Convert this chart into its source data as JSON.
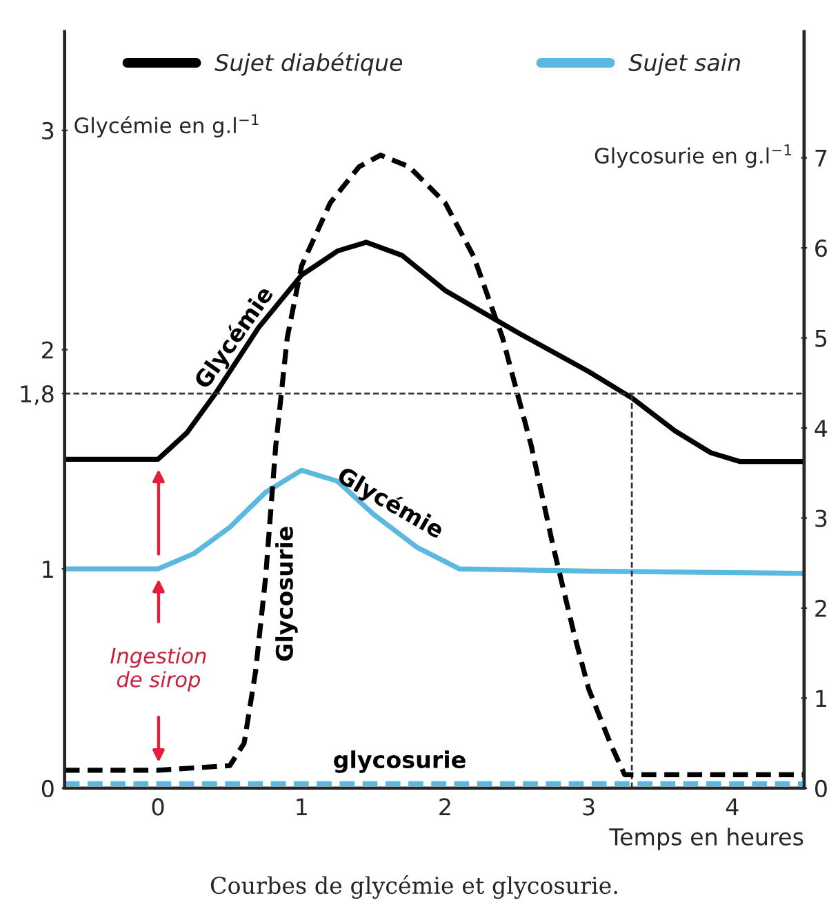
{
  "chart_data": {
    "type": "line",
    "title": "Courbes de glycémie et glycosurie.",
    "xlabel": "Temps en heures",
    "ylabel": "Glycémie en g.l$^{−1}$",
    "y2label": "Glycosurie en g.l$^{−1}$",
    "xlim": [
      -0.65,
      4.5
    ],
    "xticks": [
      0,
      1,
      2,
      3,
      4
    ],
    "ylim": [
      0,
      3.45
    ],
    "yticks": [
      0,
      1,
      {
        "value": 1.8,
        "label": "1,8"
      },
      2,
      3
    ],
    "y2lim": [
      0,
      8.4
    ],
    "y2ticks": [
      0,
      1,
      2,
      3,
      4,
      5,
      6,
      7
    ],
    "grid": false,
    "legend": "top",
    "series": [
      {
        "name": "Sujet diabétique",
        "color": "#000000",
        "line_style": "solid",
        "x": [
          -0.65,
          0,
          0.2,
          0.4,
          0.7,
          1.0,
          1.25,
          1.45,
          1.7,
          2.0,
          2.5,
          3.0,
          3.3,
          3.6,
          3.85,
          4.05,
          4.5
        ],
        "values": [
          1.5,
          1.5,
          1.62,
          1.8,
          2.1,
          2.34,
          2.45,
          2.49,
          2.43,
          2.27,
          2.08,
          1.9,
          1.78,
          1.63,
          1.53,
          1.49,
          1.49
        ]
      },
      {
        "name": "Sujet sain",
        "color": "#5bb8de",
        "line_style": "solid",
        "x": [
          -0.65,
          0,
          0.25,
          0.5,
          0.75,
          1.0,
          1.25,
          1.5,
          1.8,
          2.1,
          3.0,
          4.5
        ],
        "values": [
          1.0,
          1.0,
          1.07,
          1.19,
          1.35,
          1.45,
          1.4,
          1.25,
          1.1,
          1.0,
          0.99,
          0.98
        ]
      },
      {
        "color": "#000000",
        "line_style": "dashed",
        "axis": "y2",
        "x": [
          -0.65,
          0,
          0.5,
          0.6,
          0.68,
          0.75,
          0.82,
          0.9,
          1.0,
          1.2,
          1.4,
          1.55,
          1.75,
          2.0,
          2.2,
          2.4,
          2.6,
          2.75,
          2.9,
          3.0,
          3.15,
          3.25,
          4.5
        ],
        "values": [
          0.2,
          0.2,
          0.25,
          0.5,
          1.3,
          2.35,
          3.8,
          5.0,
          5.8,
          6.5,
          6.9,
          7.03,
          6.9,
          6.5,
          5.9,
          5.0,
          3.8,
          2.7,
          1.7,
          1.1,
          0.5,
          0.15,
          0.15
        ]
      },
      {
        "color": "#5bb8de",
        "line_style": "dashed",
        "axis": "y2",
        "x": [
          -0.65,
          4.5
        ],
        "values": [
          0.05,
          0.05
        ]
      }
    ],
    "ref_lines": [
      {
        "axis": "y",
        "value": 1.8,
        "line_style": "dashed",
        "color": "#333333"
      },
      {
        "axis": "x",
        "value": 3.3,
        "line_style": "dashed",
        "color": "#333333"
      }
    ],
    "annotations": [
      "Glycémie",
      "Glycémie",
      "Glycosurie",
      "glycosurie",
      "Ingestion\nde sirop"
    ]
  }
}
